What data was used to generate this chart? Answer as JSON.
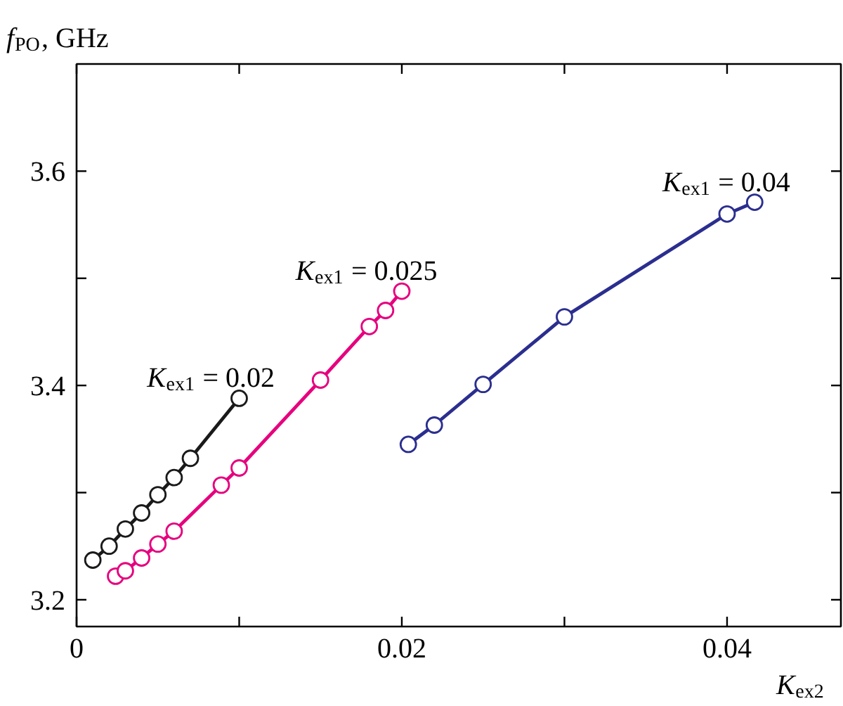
{
  "chart_data": {
    "type": "line",
    "marker": "circle",
    "line_style": "solid",
    "grid": false,
    "xlabel": "K$_{ex2}$",
    "ylabel": "f$_{PO}$, GHz",
    "xlim": [
      0,
      0.047
    ],
    "ylim": [
      3.175,
      3.7
    ],
    "xticks": [
      0,
      {
        "value": 0.01,
        "label": null
      },
      0.02,
      {
        "value": 0.03,
        "label": null
      },
      0.04
    ],
    "yticks": [
      3.2,
      {
        "value": 3.3,
        "label": null
      },
      3.4,
      {
        "value": 3.5,
        "label": null
      },
      3.6
    ],
    "series": [
      {
        "name": "K$_{ex1}$ = 0.02",
        "color": "#1a1a1a",
        "x": [
          0.001,
          0.002,
          0.003,
          0.004,
          0.005,
          0.006,
          0.007,
          0.01
        ],
        "values": [
          3.237,
          3.25,
          3.266,
          3.281,
          3.298,
          3.314,
          3.332,
          3.388
        ]
      },
      {
        "name": "K$_{ex1}$ = 0.025",
        "color": "#e6007e",
        "x": [
          0.0024,
          0.003,
          0.004,
          0.005,
          0.006,
          0.0089,
          0.01,
          0.015,
          0.018,
          0.019,
          0.02
        ],
        "values": [
          3.222,
          3.227,
          3.239,
          3.252,
          3.264,
          3.307,
          3.323,
          3.405,
          3.455,
          3.47,
          3.488
        ]
      },
      {
        "name": "K$_{ex1}$ = 0.04",
        "color": "#2b2e8f",
        "x": [
          0.0204,
          0.022,
          0.025,
          0.03,
          0.04,
          0.0417
        ],
        "values": [
          3.345,
          3.363,
          3.401,
          3.464,
          3.56,
          3.571
        ]
      }
    ]
  }
}
